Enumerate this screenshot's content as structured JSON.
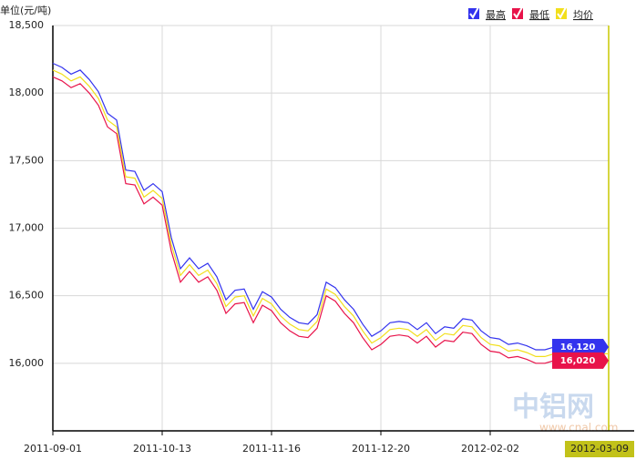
{
  "chart_data": {
    "type": "line",
    "y_axis_label": "单位(元/吨)",
    "watermark": "中铝网",
    "watermark_url": "www.cnal.com",
    "categories": [
      "2011-09-01",
      null,
      null,
      null,
      null,
      null,
      null,
      null,
      null,
      null,
      null,
      null,
      "2011-10-13",
      null,
      null,
      null,
      null,
      null,
      null,
      null,
      null,
      null,
      null,
      null,
      "2011-11-16",
      null,
      null,
      null,
      null,
      null,
      null,
      null,
      null,
      null,
      null,
      null,
      "2011-12-20",
      null,
      null,
      null,
      null,
      null,
      null,
      null,
      null,
      null,
      null,
      null,
      "2012-02-02",
      null,
      null,
      null,
      null,
      null,
      null,
      null,
      null,
      null,
      null,
      null,
      null,
      "2012-03-09"
    ],
    "series": [
      {
        "name": "最高",
        "color": "#3333ee",
        "values": [
          18220,
          18190,
          18140,
          18170,
          18100,
          18010,
          17850,
          17800,
          17430,
          17420,
          17280,
          17330,
          17270,
          16930,
          16700,
          16780,
          16700,
          16740,
          16640,
          16470,
          16540,
          16550,
          16400,
          16530,
          16490,
          16400,
          16340,
          16300,
          16290,
          16360,
          16600,
          16560,
          16470,
          16400,
          16290,
          16200,
          16240,
          16300,
          16310,
          16300,
          16250,
          16300,
          16220,
          16270,
          16260,
          16330,
          16320,
          16240,
          16190,
          16180,
          16140,
          16150,
          16130,
          16100,
          16100,
          16120,
          16120,
          16120,
          16120,
          16120,
          16120,
          16120
        ],
        "value_labels": [
          null,
          null,
          null,
          null,
          null,
          null,
          null,
          null,
          null,
          null,
          null,
          null,
          null,
          null,
          null,
          null,
          null,
          null,
          null,
          null,
          null,
          null,
          null,
          null,
          null,
          null,
          null,
          null,
          null,
          null,
          null,
          null,
          null,
          null,
          null,
          null,
          null,
          null,
          null,
          null,
          null,
          null,
          null,
          null,
          null,
          null,
          null,
          null,
          null,
          null,
          null,
          null,
          null,
          null,
          null,
          null,
          null,
          null,
          null,
          null,
          null,
          "16,120"
        ]
      },
      {
        "name": "最低",
        "color": "#e8134a",
        "values": [
          18120,
          18090,
          18040,
          18070,
          18000,
          17910,
          17750,
          17700,
          17330,
          17320,
          17180,
          17230,
          17170,
          16830,
          16600,
          16680,
          16600,
          16640,
          16540,
          16370,
          16440,
          16450,
          16300,
          16430,
          16390,
          16300,
          16240,
          16200,
          16190,
          16260,
          16500,
          16460,
          16370,
          16300,
          16190,
          16100,
          16140,
          16200,
          16210,
          16200,
          16150,
          16200,
          16120,
          16170,
          16160,
          16230,
          16220,
          16140,
          16090,
          16080,
          16040,
          16050,
          16030,
          16000,
          16000,
          16020,
          16020,
          16020,
          16020,
          16020,
          16020,
          16020
        ],
        "value_labels": [
          null,
          null,
          null,
          null,
          null,
          null,
          null,
          null,
          null,
          null,
          null,
          null,
          null,
          null,
          null,
          null,
          null,
          null,
          null,
          null,
          null,
          null,
          null,
          null,
          null,
          null,
          null,
          null,
          null,
          null,
          null,
          null,
          null,
          null,
          null,
          null,
          null,
          null,
          null,
          null,
          null,
          null,
          null,
          null,
          null,
          null,
          null,
          null,
          null,
          null,
          null,
          null,
          null,
          null,
          null,
          null,
          null,
          null,
          null,
          null,
          null,
          "16,020"
        ]
      },
      {
        "name": "均价",
        "color": "#f2df1c",
        "values": [
          18170,
          18140,
          18090,
          18120,
          18050,
          17960,
          17800,
          17750,
          17380,
          17370,
          17230,
          17280,
          17220,
          16880,
          16650,
          16730,
          16650,
          16690,
          16590,
          16420,
          16490,
          16500,
          16350,
          16480,
          16440,
          16350,
          16290,
          16250,
          16240,
          16310,
          16550,
          16510,
          16420,
          16350,
          16240,
          16150,
          16190,
          16250,
          16260,
          16250,
          16200,
          16250,
          16170,
          16220,
          16210,
          16280,
          16270,
          16190,
          16140,
          16130,
          16090,
          16100,
          16080,
          16050,
          16050,
          16070,
          16070,
          16070,
          16070,
          16070,
          16070,
          16070
        ]
      }
    ],
    "ylim": [
      15500,
      18500
    ],
    "yticks": [
      {
        "value": 16000,
        "label": "16,000"
      },
      {
        "value": 16500,
        "label": "16,500"
      },
      {
        "value": 17000,
        "label": "17,000"
      },
      {
        "value": 17500,
        "label": "17,500"
      },
      {
        "value": 18000,
        "label": "18,000"
      },
      {
        "value": 18500,
        "label": "18,500"
      }
    ],
    "grid": true,
    "legend": "top-right"
  }
}
